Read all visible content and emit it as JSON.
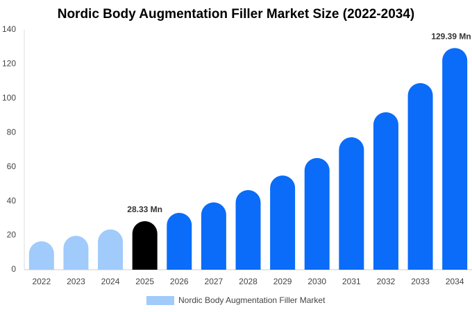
{
  "chart_data": {
    "type": "bar",
    "title": "Nordic Body Augmentation Filler Market Size (2022-2034)",
    "categories": [
      "2022",
      "2023",
      "2024",
      "2025",
      "2026",
      "2027",
      "2028",
      "2029",
      "2030",
      "2031",
      "2032",
      "2033",
      "2034"
    ],
    "series": [
      {
        "name": "Nordic Body Augmentation Filler Market",
        "color": "#a0cbfb",
        "values": [
          16.6,
          19.8,
          23.5,
          28.33,
          33.2,
          39.3,
          46.5,
          55,
          65.2,
          77.3,
          91.9,
          108.9,
          129.39
        ],
        "value_labels": [
          null,
          null,
          null,
          "28.33 Mn",
          null,
          null,
          null,
          null,
          null,
          null,
          null,
          null,
          "129.39 Mn"
        ],
        "colors": [
          "#a0cbfb",
          "#a0cbfb",
          "#a0cbfb",
          "#000000",
          "#0a6cf8",
          "#0a6cf8",
          "#0a6cf8",
          "#0a6cf8",
          "#0a6cf8",
          "#0a6cf8",
          "#0a6cf8",
          "#0a6cf8",
          "#0a6cf8"
        ]
      }
    ],
    "ylim": [
      0,
      140
    ],
    "yticks": [
      0,
      20,
      40,
      60,
      80,
      100,
      120,
      140
    ],
    "grid": false
  }
}
